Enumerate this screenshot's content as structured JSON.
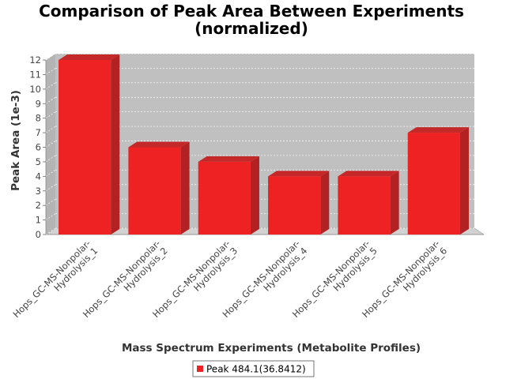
{
  "chart_data": {
    "type": "bar",
    "title_lines": [
      "Comparison of Peak Area Between Experiments",
      "(normalized)"
    ],
    "xlabel": "Mass Spectrum Experiments (Metabolite Profiles)",
    "ylabel": "Peak Area (1e-3)",
    "categories": [
      [
        "Hops_GC-MS-Nonpolar-",
        "Hydrolysis_1"
      ],
      [
        "Hops_GC-MS-Nonpolar-",
        "Hydrolysis_2"
      ],
      [
        "Hops_GC-MS-Nonpolar-",
        "Hydrolysis_3"
      ],
      [
        "Hops_GC-MS-Nonpolar-",
        "Hydrolysis_4"
      ],
      [
        "Hops_GC-MS-Nonpolar-",
        "Hydrolysis_5"
      ],
      [
        "Hops_GC-MS-Nonpolar-",
        "Hydrolysis_6"
      ]
    ],
    "series": [
      {
        "name": "Peak 484.1(36.8412)",
        "values": [
          12,
          6,
          5,
          4,
          4,
          7
        ],
        "color": "#ee2222"
      }
    ],
    "ylim": [
      0,
      12
    ],
    "yticks": [
      "0",
      "1",
      "2",
      "3",
      "4",
      "5",
      "6",
      "7",
      "8",
      "9",
      "10",
      "11",
      "12"
    ],
    "grid": true,
    "legend_position": "bottom-center",
    "plot_background": "#c0c0c0"
  }
}
